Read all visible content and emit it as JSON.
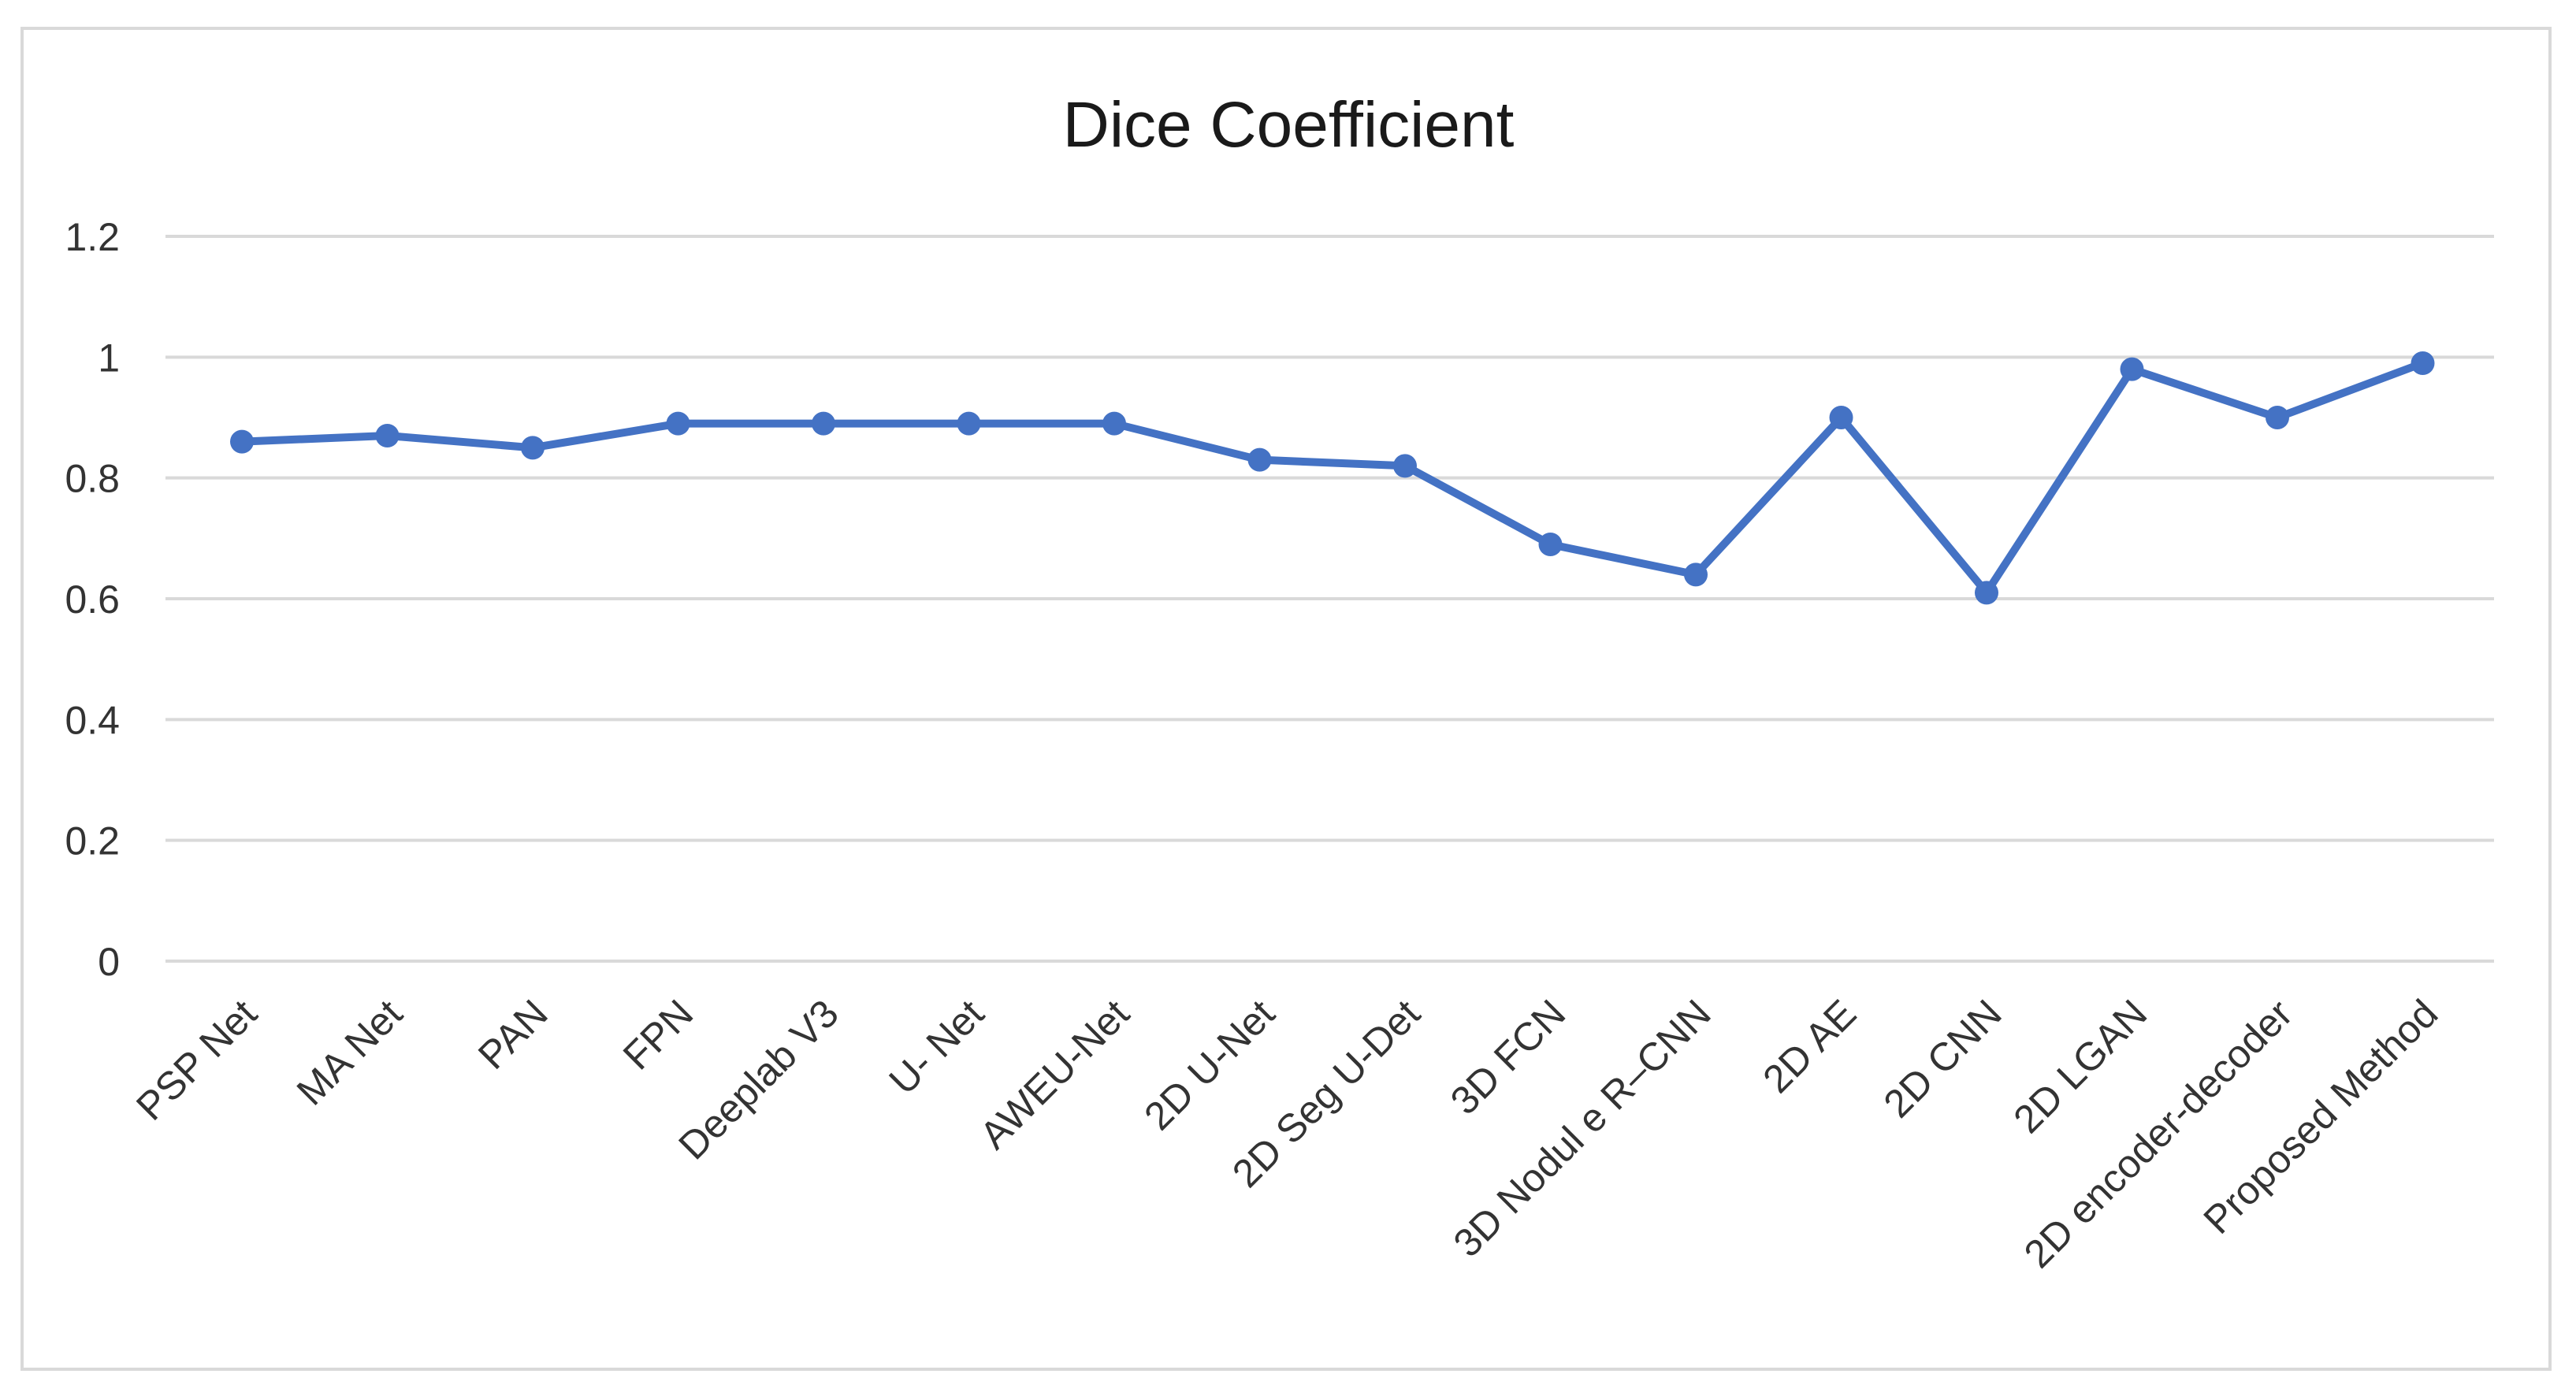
{
  "chart_data": {
    "type": "line",
    "title": "Dice Coefficient",
    "xlabel": "",
    "ylabel": "",
    "categories": [
      "PSP Net",
      "MA Net",
      "PAN",
      "FPN",
      "Deeplab V3",
      "U- Net",
      "AWEU-Net",
      "2D U-Net",
      "2D Seg U-Det",
      "3D FCN",
      "3D Nodul e R–CNN",
      "2D AE",
      "2D CNN",
      "2D LGAN",
      "2D encoder-decoder",
      "Proposed Method"
    ],
    "series": [
      {
        "values": [
          0.86,
          0.87,
          0.85,
          0.89,
          0.89,
          0.89,
          0.89,
          0.83,
          0.82,
          0.69,
          0.64,
          0.9,
          0.61,
          0.98,
          0.9,
          0.99
        ]
      }
    ],
    "yticks": [
      "0",
      "0.2",
      "0.4",
      "0.6",
      "0.8",
      "1",
      "1.2"
    ],
    "ylim": [
      0,
      1.2
    ],
    "grid": true,
    "legend": "none",
    "colors": {
      "line": "#4472c4",
      "grid": "#d9d9d9"
    }
  }
}
